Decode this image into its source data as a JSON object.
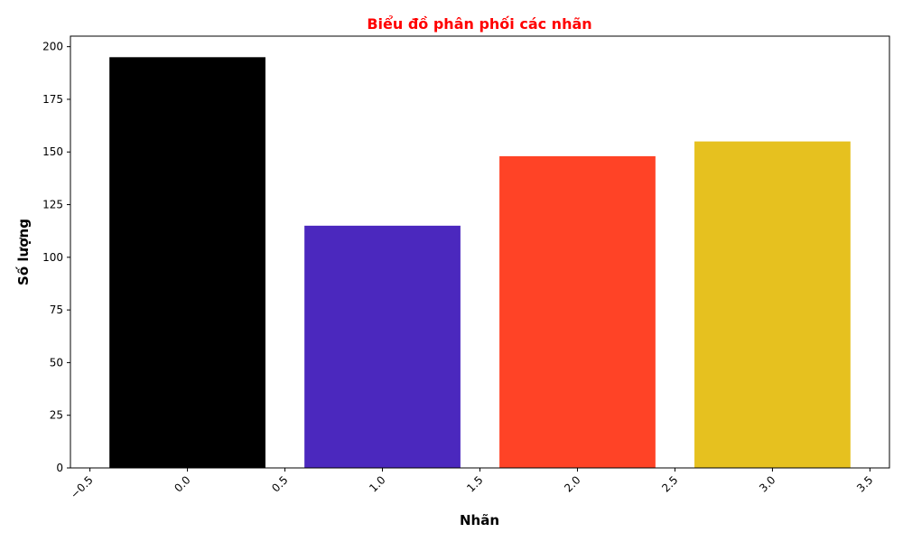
{
  "chart_data": {
    "type": "bar",
    "title": "Biểu đồ phân phối các nhãn",
    "title_color": "#ff0000",
    "xlabel": "Nhãn",
    "ylabel": "Số lượng",
    "x": [
      0,
      1,
      2,
      3
    ],
    "values": [
      195,
      115,
      148,
      155
    ],
    "colors": [
      "#000000",
      "#4b28be",
      "#ff4326",
      "#e6c11f"
    ],
    "bar_width": 0.8,
    "xlim": [
      -0.6,
      3.6
    ],
    "ylim": [
      0,
      205
    ],
    "xticks": [
      -0.5,
      0.0,
      0.5,
      1.0,
      1.5,
      2.0,
      2.5,
      3.0,
      3.5
    ],
    "xtick_labels": [
      "−0.5",
      "0.0",
      "0.5",
      "1.0",
      "1.5",
      "2.0",
      "2.5",
      "3.0",
      "3.5"
    ],
    "xtick_rotation": -45,
    "yticks": [
      0,
      25,
      50,
      75,
      100,
      125,
      150,
      175,
      200
    ],
    "ytick_labels": [
      "0",
      "25",
      "50",
      "75",
      "100",
      "125",
      "150",
      "175",
      "200"
    ],
    "grid": false,
    "legend": "none"
  }
}
